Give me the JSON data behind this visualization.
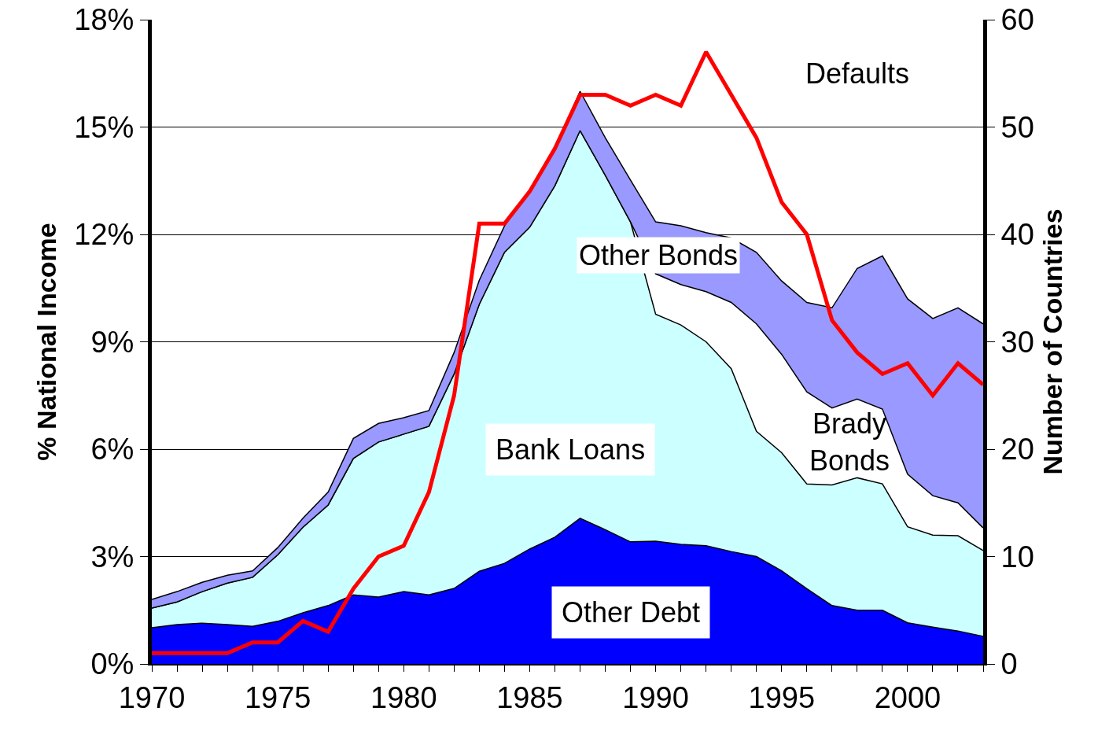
{
  "chart_data": {
    "type": "area",
    "stacked": true,
    "ylabel": "% National Income",
    "y2label": "Number of Countries",
    "x": [
      1970,
      1971,
      1972,
      1973,
      1974,
      1975,
      1976,
      1977,
      1978,
      1979,
      1980,
      1981,
      1982,
      1983,
      1984,
      1985,
      1986,
      1987,
      1988,
      1989,
      1990,
      1991,
      1992,
      1993,
      1994,
      1995,
      1996,
      1997,
      1998,
      1999,
      2000,
      2001,
      2002,
      2003
    ],
    "series": [
      {
        "name": "Other Debt",
        "color": "#0000ff",
        "values": [
          1.01,
          1.1,
          1.14,
          1.1,
          1.05,
          1.19,
          1.43,
          1.63,
          1.93,
          1.87,
          2.02,
          1.93,
          2.11,
          2.59,
          2.81,
          3.21,
          3.54,
          4.07,
          3.75,
          3.41,
          3.43,
          3.34,
          3.3,
          3.14,
          3.0,
          2.6,
          2.1,
          1.63,
          1.5,
          1.5,
          1.15,
          1.03,
          0.92,
          0.77
        ]
      },
      {
        "name": "Bank Loans",
        "color": "#ccffff",
        "values": [
          0.55,
          0.63,
          0.88,
          1.16,
          1.37,
          1.86,
          2.39,
          2.81,
          3.81,
          4.33,
          4.4,
          4.71,
          5.99,
          7.46,
          8.69,
          8.99,
          9.82,
          10.83,
          9.9,
          8.94,
          6.34,
          6.13,
          5.7,
          5.11,
          3.5,
          3.3,
          2.93,
          3.37,
          3.7,
          3.53,
          2.68,
          2.57,
          2.66,
          2.4
        ]
      },
      {
        "name": "Brady Bonds",
        "color": "#ffffff",
        "values": [
          0,
          0,
          0,
          0,
          0,
          0,
          0,
          0,
          0,
          0,
          0,
          0,
          0,
          0,
          0,
          0,
          0,
          0,
          0,
          0,
          1.13,
          1.13,
          1.4,
          1.85,
          3.0,
          2.75,
          2.57,
          2.15,
          2.2,
          2.09,
          1.47,
          1.1,
          0.92,
          0.63
        ]
      },
      {
        "name": "Other Bonds",
        "color": "#9999ff",
        "values": [
          0.24,
          0.29,
          0.26,
          0.22,
          0.18,
          0.2,
          0.25,
          0.36,
          0.56,
          0.52,
          0.46,
          0.44,
          0.6,
          0.67,
          0.74,
          1.05,
          1.06,
          1.1,
          1.05,
          1.17,
          1.45,
          1.64,
          1.65,
          1.8,
          2.0,
          2.05,
          2.5,
          2.8,
          3.65,
          4.28,
          4.9,
          4.95,
          5.45,
          5.7
        ]
      },
      {
        "name": "Defaults",
        "type": "line",
        "axis": "y2",
        "color": "#ff0000",
        "values": [
          1,
          1,
          1,
          1,
          2,
          2,
          4,
          3,
          7,
          10,
          11,
          16,
          25,
          41,
          41,
          44,
          48,
          53,
          53,
          52,
          53,
          52,
          57,
          53,
          49,
          43,
          40,
          32,
          29,
          27,
          28,
          25,
          28,
          26
        ]
      }
    ],
    "xlim": [
      1970,
      2003
    ],
    "xticks": [
      1970,
      {
        "value": 1971,
        "label": null
      },
      {
        "value": 1972,
        "label": null
      },
      {
        "value": 1973,
        "label": null
      },
      {
        "value": 1974,
        "label": null
      },
      1975,
      {
        "value": 1976,
        "label": null
      },
      {
        "value": 1977,
        "label": null
      },
      {
        "value": 1978,
        "label": null
      },
      {
        "value": 1979,
        "label": null
      },
      1980,
      {
        "value": 1981,
        "label": null
      },
      {
        "value": 1982,
        "label": null
      },
      {
        "value": 1983,
        "label": null
      },
      {
        "value": 1984,
        "label": null
      },
      1985,
      {
        "value": 1986,
        "label": null
      },
      {
        "value": 1987,
        "label": null
      },
      {
        "value": 1988,
        "label": null
      },
      {
        "value": 1989,
        "label": null
      },
      1990,
      {
        "value": 1991,
        "label": null
      },
      {
        "value": 1992,
        "label": null
      },
      {
        "value": 1993,
        "label": null
      },
      {
        "value": 1994,
        "label": null
      },
      1995,
      {
        "value": 1996,
        "label": null
      },
      {
        "value": 1997,
        "label": null
      },
      {
        "value": 1998,
        "label": null
      },
      {
        "value": 1999,
        "label": null
      },
      2000,
      {
        "value": 2001,
        "label": null
      },
      {
        "value": 2002,
        "label": null
      },
      {
        "value": 2003,
        "label": null
      }
    ],
    "ylim": [
      0,
      18
    ],
    "yticks": [
      {
        "value": 0,
        "label": "0%"
      },
      {
        "value": 3,
        "label": "3%"
      },
      {
        "value": 6,
        "label": "6%"
      },
      {
        "value": 9,
        "label": "9%"
      },
      {
        "value": 12,
        "label": "12%"
      },
      {
        "value": 15,
        "label": "15%"
      },
      {
        "value": 18,
        "label": "18%"
      }
    ],
    "y2lim": [
      0,
      60
    ],
    "y2ticks": [
      0,
      10,
      20,
      30,
      40,
      50,
      60
    ],
    "grid": "y",
    "legend": false,
    "marker": "none",
    "line_style": "solid"
  }
}
